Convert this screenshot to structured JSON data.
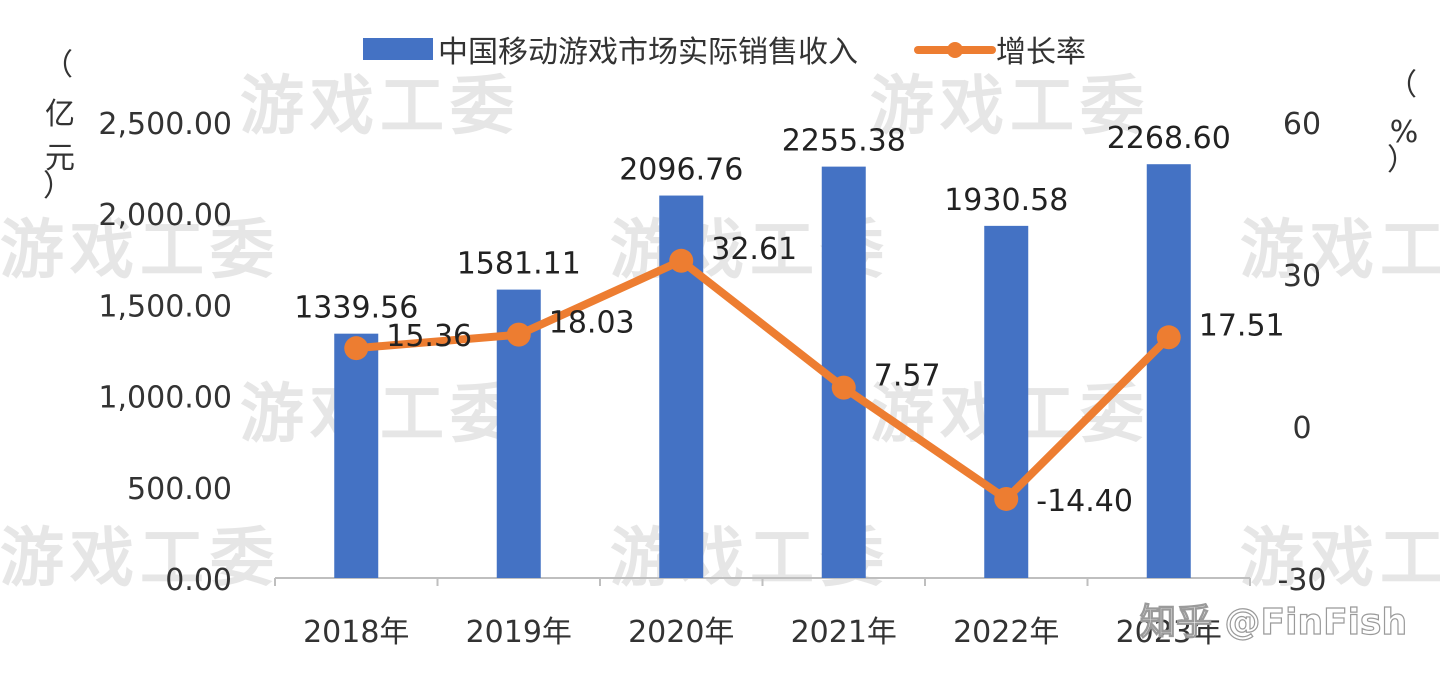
{
  "chart_data": {
    "type": "bar+line",
    "categories": [
      "2018年",
      "2019年",
      "2020年",
      "2021年",
      "2022年",
      "2023年"
    ],
    "series": [
      {
        "name": "中国移动游戏市场实际销售收入",
        "type": "bar",
        "axis": "left",
        "values": [
          1339.56,
          1581.11,
          2096.76,
          2255.38,
          1930.58,
          2268.6
        ],
        "labels": [
          "1339.56",
          "1581.11",
          "2096.76",
          "2255.38",
          "1930.58",
          "2268.60"
        ],
        "color": "#4472C4"
      },
      {
        "name": "增长率",
        "type": "line",
        "axis": "right",
        "values": [
          15.36,
          18.03,
          32.61,
          7.57,
          -14.4,
          17.51
        ],
        "labels": [
          "15.36",
          "18.03",
          "32.61",
          "7.57",
          "-14.40",
          "17.51"
        ],
        "color": "#ED7D31"
      }
    ],
    "left_axis": {
      "unit_label": [
        "（",
        "亿",
        "元",
        "）"
      ],
      "ylim": [
        0,
        2500
      ],
      "ticks": [
        "0.00",
        "500.00",
        "1,000.00",
        "1,500.00",
        "2,000.00",
        "2,500.00"
      ]
    },
    "right_axis": {
      "unit_label": [
        "（",
        "%",
        "）"
      ],
      "ylim": [
        -30,
        60
      ],
      "ticks": [
        "-30",
        "0",
        "30",
        "60"
      ]
    },
    "legend_position": "top-center",
    "grid": false
  },
  "watermark": {
    "text": "游戏工委",
    "credit": "知乎 @FinFish"
  }
}
